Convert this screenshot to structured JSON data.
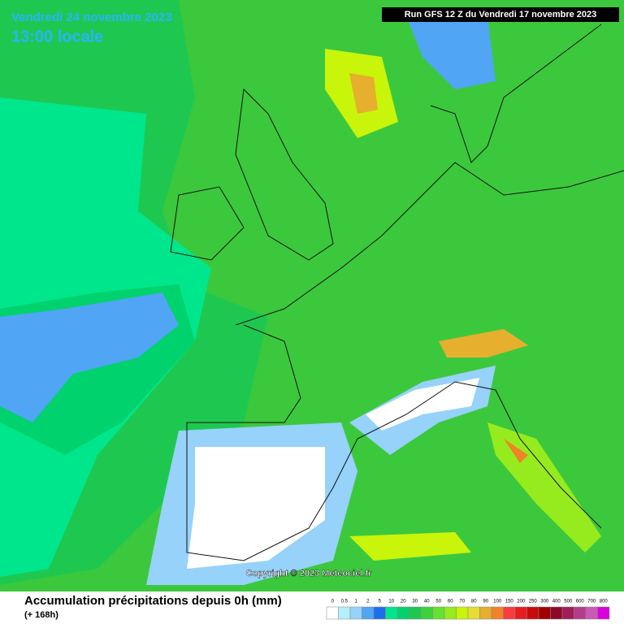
{
  "header": {
    "date": "Vendredi 24 novembre 2023",
    "time": "13:00 locale",
    "run": "Run GFS 12 Z du Vendredi 17 novembre 2023"
  },
  "copyright": "Copyright © 2023 Meteociel.fr",
  "footer": {
    "title": "Accumulation précipitations depuis 0h (mm)",
    "subtitle": "(+ 168h)"
  },
  "legend": {
    "values": [
      0,
      0.5,
      1,
      2,
      5,
      10,
      20,
      30,
      40,
      50,
      60,
      70,
      80,
      90,
      100,
      150,
      200,
      250,
      300,
      400,
      500,
      600,
      700,
      800
    ],
    "colors": [
      "#ffffff",
      "#b4f0fa",
      "#96d2fa",
      "#50a5f5",
      "#1e6eeb",
      "#00e68c",
      "#00d26e",
      "#1ec850",
      "#3cd23c",
      "#64e132",
      "#96eb1e",
      "#c8f50a",
      "#e6dc32",
      "#e6af2d",
      "#f08228",
      "#fa3c3c",
      "#e61e1e",
      "#c80a0a",
      "#a00000",
      "#8c0a28",
      "#a01e5a",
      "#b43c8c",
      "#c85ab4",
      "#dc00dc"
    ]
  }
}
